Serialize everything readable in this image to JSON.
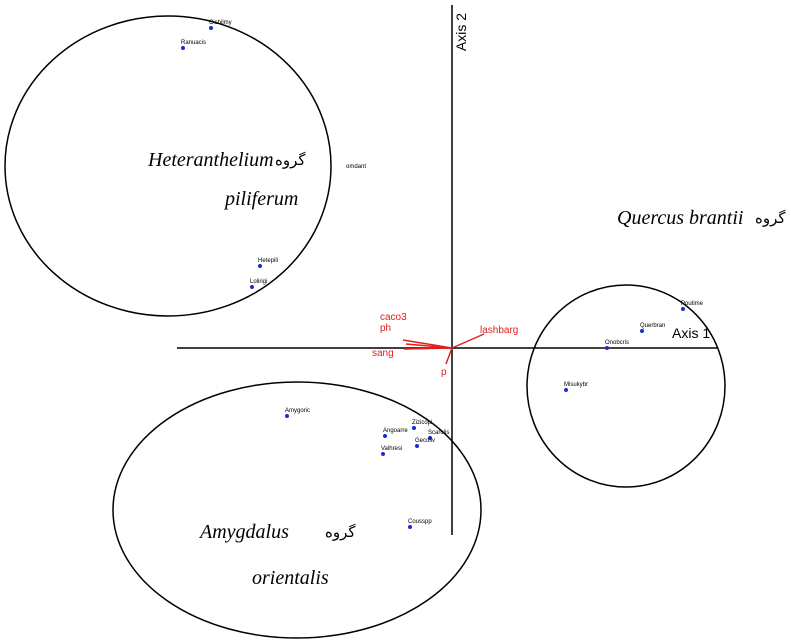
{
  "axes": {
    "axis1": "Axis 1",
    "axis2": "Axis 2"
  },
  "groups": [
    {
      "prefix": "گروه",
      "name1": "Heteranthelium",
      "name2": "piliferum"
    },
    {
      "prefix": "گروه",
      "name1": "Quercus brantii"
    },
    {
      "prefix": "گروه",
      "name1": "Amygdalus",
      "name2": "orientalis"
    }
  ],
  "points": [
    "Cichilmy",
    "Ranuacis",
    "omdant",
    "Hetepili",
    "Lolirigi",
    "Poutime",
    "Querbran",
    "Onobcris",
    "Misukybr",
    "Amygoric",
    "Zizicopi",
    "Angoarre",
    "Scarolis",
    "Gecoliv",
    "Valhresi",
    "Cousspp"
  ],
  "vectors": [
    "caco3",
    "ph",
    "sang",
    "lashbarg",
    "p"
  ]
}
